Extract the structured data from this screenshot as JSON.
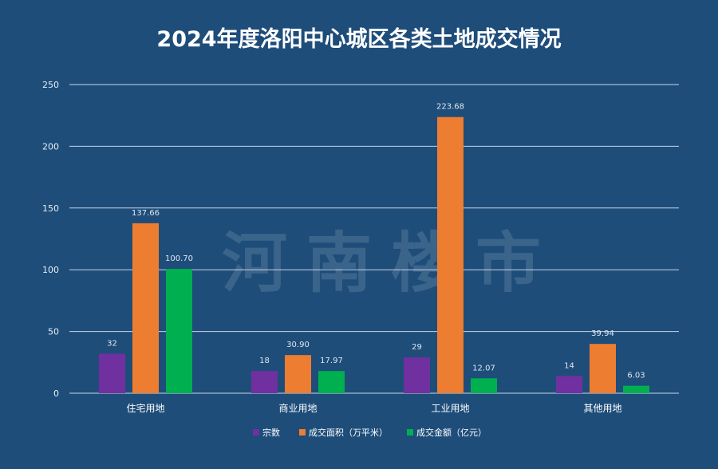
{
  "chart_data": {
    "type": "bar",
    "title": "2024年度洛阳中心城区各类土地成交情况",
    "categories": [
      "住宅用地",
      "商业用地",
      "工业用地",
      "其他用地"
    ],
    "series": [
      {
        "name": "宗数",
        "values": [
          32,
          18,
          29,
          14
        ],
        "labels": [
          "32",
          "18",
          "29",
          "14"
        ],
        "color": "#7030a0"
      },
      {
        "name": "成交面积（万平米）",
        "values": [
          137.66,
          30.9,
          223.68,
          39.94
        ],
        "labels": [
          "137.66",
          "30.90",
          "223.68",
          "39.94"
        ],
        "color": "#ed7d31"
      },
      {
        "name": "成交金额（亿元）",
        "values": [
          100.7,
          17.97,
          12.07,
          6.03
        ],
        "labels": [
          "100.70",
          "17.97",
          "12.07",
          "6.03"
        ],
        "color": "#00b050"
      }
    ],
    "ylim": [
      0,
      250
    ],
    "yticks": [
      0,
      50,
      100,
      150,
      200,
      250
    ],
    "grid": true,
    "legend_position": "bottom"
  },
  "watermark": "河南楼市",
  "colors": {
    "background": "#1e4d7a",
    "gridline": "#c8d6e5",
    "text": "#ffffff"
  }
}
